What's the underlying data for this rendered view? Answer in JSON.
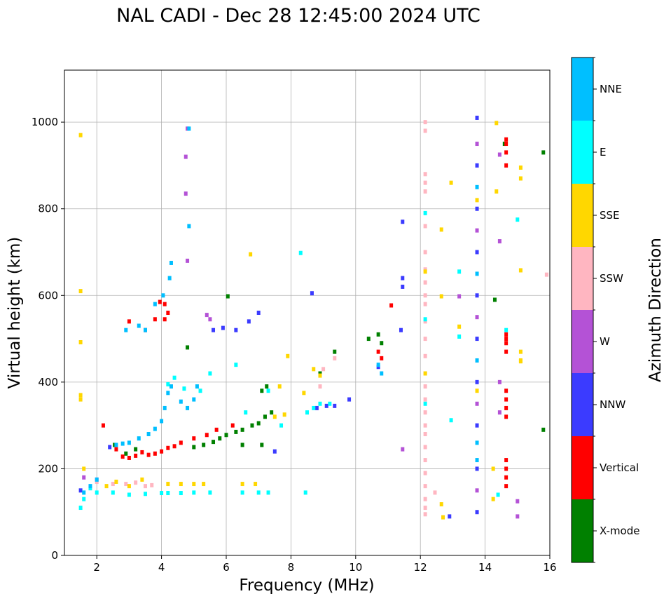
{
  "chart_data": {
    "type": "scatter",
    "title": "NAL CADI - Dec 28 12:45:00 2024 UTC",
    "xlabel": "Frequency (MHz)",
    "ylabel": "Virtual height (km)",
    "xlim": [
      1,
      16
    ],
    "ylim": [
      0,
      1120
    ],
    "xticks": [
      2,
      4,
      6,
      8,
      10,
      12,
      14,
      16
    ],
    "yticks": [
      0,
      200,
      400,
      600,
      800,
      1000
    ],
    "grid": true,
    "colorbar": {
      "label": "Azimuth Direction",
      "categories": [
        {
          "name": "X-mode",
          "color": "#008000"
        },
        {
          "name": "Vertical",
          "color": "#ff0000"
        },
        {
          "name": "NNW",
          "color": "#3b3bff"
        },
        {
          "name": "W",
          "color": "#b452d6"
        },
        {
          "name": "SSW",
          "color": "#ffb6c1"
        },
        {
          "name": "SSE",
          "color": "#ffd700"
        },
        {
          "name": "E",
          "color": "#00ffff"
        },
        {
          "name": "NNE",
          "color": "#00bfff"
        }
      ]
    },
    "series": [
      {
        "name": "X-mode",
        "points": [
          [
            2.55,
            255
          ],
          [
            2.9,
            235
          ],
          [
            3.2,
            245
          ],
          [
            5.0,
            250
          ],
          [
            5.3,
            255
          ],
          [
            5.6,
            262
          ],
          [
            5.8,
            270
          ],
          [
            6.0,
            278
          ],
          [
            6.3,
            285
          ],
          [
            6.5,
            290
          ],
          [
            6.8,
            300
          ],
          [
            7.0,
            305
          ],
          [
            7.2,
            320
          ],
          [
            7.4,
            330
          ],
          [
            7.1,
            380
          ],
          [
            7.25,
            390
          ],
          [
            8.9,
            420
          ],
          [
            9.35,
            470
          ],
          [
            10.4,
            500
          ],
          [
            10.7,
            510
          ],
          [
            10.8,
            490
          ],
          [
            6.5,
            255
          ],
          [
            7.1,
            255
          ],
          [
            4.8,
            480
          ],
          [
            6.05,
            598
          ],
          [
            14.3,
            590
          ],
          [
            15.8,
            930
          ],
          [
            15.8,
            290
          ],
          [
            14.6,
            950
          ]
        ]
      },
      {
        "name": "Vertical",
        "points": [
          [
            2.6,
            245
          ],
          [
            2.8,
            228
          ],
          [
            3.0,
            225
          ],
          [
            3.2,
            230
          ],
          [
            3.4,
            238
          ],
          [
            3.6,
            232
          ],
          [
            3.8,
            235
          ],
          [
            4.0,
            240
          ],
          [
            4.2,
            248
          ],
          [
            4.4,
            252
          ],
          [
            4.6,
            260
          ],
          [
            5.0,
            270
          ],
          [
            5.4,
            278
          ],
          [
            5.7,
            290
          ],
          [
            6.2,
            300
          ],
          [
            2.2,
            300
          ],
          [
            3.0,
            540
          ],
          [
            3.5,
            520
          ],
          [
            3.8,
            545
          ],
          [
            3.95,
            585
          ],
          [
            4.1,
            580
          ],
          [
            4.2,
            560
          ],
          [
            4.1,
            545
          ],
          [
            10.7,
            470
          ],
          [
            10.8,
            455
          ],
          [
            11.1,
            577
          ],
          [
            14.65,
            900
          ],
          [
            14.65,
            930
          ],
          [
            14.65,
            950
          ],
          [
            14.65,
            960
          ],
          [
            14.65,
            510
          ],
          [
            14.65,
            500
          ],
          [
            14.65,
            490
          ],
          [
            14.65,
            470
          ],
          [
            14.65,
            380
          ],
          [
            14.65,
            360
          ],
          [
            14.65,
            340
          ],
          [
            14.65,
            320
          ],
          [
            14.65,
            220
          ],
          [
            14.65,
            200
          ],
          [
            14.65,
            180
          ],
          [
            14.65,
            160
          ]
        ]
      },
      {
        "name": "NNW",
        "points": [
          [
            1.5,
            150
          ],
          [
            2.4,
            250
          ],
          [
            5.6,
            520
          ],
          [
            5.9,
            525
          ],
          [
            6.3,
            520
          ],
          [
            6.7,
            540
          ],
          [
            7.0,
            560
          ],
          [
            8.8,
            340
          ],
          [
            9.1,
            345
          ],
          [
            9.35,
            345
          ],
          [
            9.8,
            360
          ],
          [
            10.7,
            435
          ],
          [
            11.4,
            520
          ],
          [
            8.65,
            605
          ],
          [
            11.45,
            770
          ],
          [
            11.45,
            640
          ],
          [
            11.45,
            620
          ],
          [
            12.9,
            90
          ],
          [
            13.75,
            100
          ],
          [
            13.75,
            200
          ],
          [
            13.75,
            300
          ],
          [
            13.75,
            400
          ],
          [
            13.75,
            500
          ],
          [
            13.75,
            600
          ],
          [
            13.75,
            700
          ],
          [
            13.75,
            800
          ],
          [
            13.75,
            900
          ],
          [
            13.75,
            1010
          ],
          [
            7.5,
            240
          ]
        ]
      },
      {
        "name": "W",
        "points": [
          [
            1.6,
            180
          ],
          [
            2.0,
            175
          ],
          [
            4.8,
            985
          ],
          [
            4.75,
            920
          ],
          [
            4.75,
            835
          ],
          [
            4.8,
            680
          ],
          [
            5.4,
            555
          ],
          [
            5.5,
            545
          ],
          [
            11.45,
            245
          ],
          [
            13.2,
            598
          ],
          [
            13.75,
            150
          ],
          [
            13.75,
            350
          ],
          [
            13.75,
            550
          ],
          [
            13.75,
            750
          ],
          [
            13.75,
            950
          ],
          [
            14.45,
            925
          ],
          [
            14.45,
            725
          ],
          [
            14.45,
            400
          ],
          [
            14.45,
            330
          ],
          [
            15.0,
            125
          ],
          [
            15.0,
            90
          ]
        ]
      },
      {
        "name": "SSW",
        "points": [
          [
            2.0,
            170
          ],
          [
            2.5,
            165
          ],
          [
            2.9,
            165
          ],
          [
            3.2,
            168
          ],
          [
            3.5,
            160
          ],
          [
            3.7,
            162
          ],
          [
            8.9,
            390
          ],
          [
            9.0,
            430
          ],
          [
            9.35,
            455
          ],
          [
            12.15,
            1000
          ],
          [
            12.15,
            980
          ],
          [
            12.15,
            880
          ],
          [
            12.15,
            860
          ],
          [
            12.15,
            840
          ],
          [
            12.15,
            760
          ],
          [
            12.15,
            700
          ],
          [
            12.15,
            660
          ],
          [
            12.15,
            630
          ],
          [
            12.15,
            600
          ],
          [
            12.15,
            580
          ],
          [
            12.15,
            540
          ],
          [
            12.15,
            500
          ],
          [
            12.15,
            460
          ],
          [
            12.15,
            420
          ],
          [
            12.15,
            390
          ],
          [
            12.15,
            360
          ],
          [
            12.15,
            330
          ],
          [
            12.15,
            300
          ],
          [
            12.15,
            280
          ],
          [
            12.15,
            250
          ],
          [
            12.15,
            220
          ],
          [
            12.15,
            190
          ],
          [
            12.15,
            160
          ],
          [
            12.15,
            130
          ],
          [
            12.15,
            110
          ],
          [
            12.15,
            95
          ],
          [
            12.45,
            145
          ],
          [
            15.9,
            648
          ]
        ]
      },
      {
        "name": "SSE",
        "points": [
          [
            1.5,
            970
          ],
          [
            1.5,
            610
          ],
          [
            1.5,
            492
          ],
          [
            1.5,
            370
          ],
          [
            1.5,
            360
          ],
          [
            1.6,
            200
          ],
          [
            2.3,
            160
          ],
          [
            2.6,
            170
          ],
          [
            3.0,
            160
          ],
          [
            3.4,
            175
          ],
          [
            4.2,
            165
          ],
          [
            4.6,
            165
          ],
          [
            5.0,
            165
          ],
          [
            5.3,
            165
          ],
          [
            6.5,
            165
          ],
          [
            6.9,
            165
          ],
          [
            6.75,
            695
          ],
          [
            7.5,
            320
          ],
          [
            7.8,
            325
          ],
          [
            7.65,
            390
          ],
          [
            7.9,
            460
          ],
          [
            8.4,
            375
          ],
          [
            8.7,
            430
          ],
          [
            8.9,
            415
          ],
          [
            12.15,
            655
          ],
          [
            12.15,
            420
          ],
          [
            12.65,
            752
          ],
          [
            12.65,
            598
          ],
          [
            12.65,
            118
          ],
          [
            12.7,
            88
          ],
          [
            12.95,
            860
          ],
          [
            13.2,
            528
          ],
          [
            13.75,
            820
          ],
          [
            13.75,
            380
          ],
          [
            14.25,
            130
          ],
          [
            14.25,
            200
          ],
          [
            14.35,
            998
          ],
          [
            14.35,
            840
          ],
          [
            15.1,
            895
          ],
          [
            15.1,
            870
          ],
          [
            15.1,
            658
          ],
          [
            15.1,
            470
          ],
          [
            15.1,
            450
          ],
          [
            15.1,
            448
          ]
        ]
      },
      {
        "name": "E",
        "points": [
          [
            1.5,
            110
          ],
          [
            1.6,
            130
          ],
          [
            1.8,
            155
          ],
          [
            2.0,
            145
          ],
          [
            2.5,
            145
          ],
          [
            3.0,
            140
          ],
          [
            3.5,
            142
          ],
          [
            4.0,
            144
          ],
          [
            4.2,
            144
          ],
          [
            4.6,
            144
          ],
          [
            5.0,
            145
          ],
          [
            5.5,
            145
          ],
          [
            6.5,
            145
          ],
          [
            7.0,
            145
          ],
          [
            7.3,
            145
          ],
          [
            8.45,
            145
          ],
          [
            8.5,
            330
          ],
          [
            8.7,
            340
          ],
          [
            8.9,
            350
          ],
          [
            9.2,
            350
          ],
          [
            4.2,
            395
          ],
          [
            4.4,
            410
          ],
          [
            4.7,
            385
          ],
          [
            5.2,
            380
          ],
          [
            5.5,
            420
          ],
          [
            6.3,
            440
          ],
          [
            6.6,
            330
          ],
          [
            7.3,
            380
          ],
          [
            7.7,
            300
          ],
          [
            8.3,
            698
          ],
          [
            12.15,
            790
          ],
          [
            12.15,
            545
          ],
          [
            12.15,
            350
          ],
          [
            12.95,
            312
          ],
          [
            13.2,
            655
          ],
          [
            13.2,
            505
          ],
          [
            14.65,
            520
          ],
          [
            15.0,
            775
          ],
          [
            14.4,
            140
          ]
        ]
      },
      {
        "name": "NNE",
        "points": [
          [
            1.6,
            145
          ],
          [
            1.8,
            160
          ],
          [
            2.0,
            175
          ],
          [
            2.6,
            255
          ],
          [
            2.8,
            258
          ],
          [
            3.0,
            260
          ],
          [
            3.3,
            270
          ],
          [
            3.6,
            280
          ],
          [
            3.8,
            292
          ],
          [
            4.0,
            310
          ],
          [
            4.1,
            340
          ],
          [
            4.2,
            375
          ],
          [
            4.3,
            390
          ],
          [
            4.6,
            355
          ],
          [
            4.8,
            340
          ],
          [
            5.0,
            360
          ],
          [
            5.1,
            390
          ],
          [
            2.9,
            520
          ],
          [
            3.3,
            530
          ],
          [
            3.5,
            520
          ],
          [
            3.8,
            580
          ],
          [
            4.05,
            600
          ],
          [
            4.25,
            640
          ],
          [
            4.3,
            675
          ],
          [
            4.85,
            760
          ],
          [
            4.85,
            985
          ],
          [
            10.7,
            440
          ],
          [
            10.8,
            420
          ],
          [
            13.75,
            220
          ],
          [
            13.75,
            260
          ],
          [
            13.75,
            450
          ],
          [
            13.75,
            650
          ],
          [
            13.75,
            850
          ]
        ]
      }
    ]
  }
}
